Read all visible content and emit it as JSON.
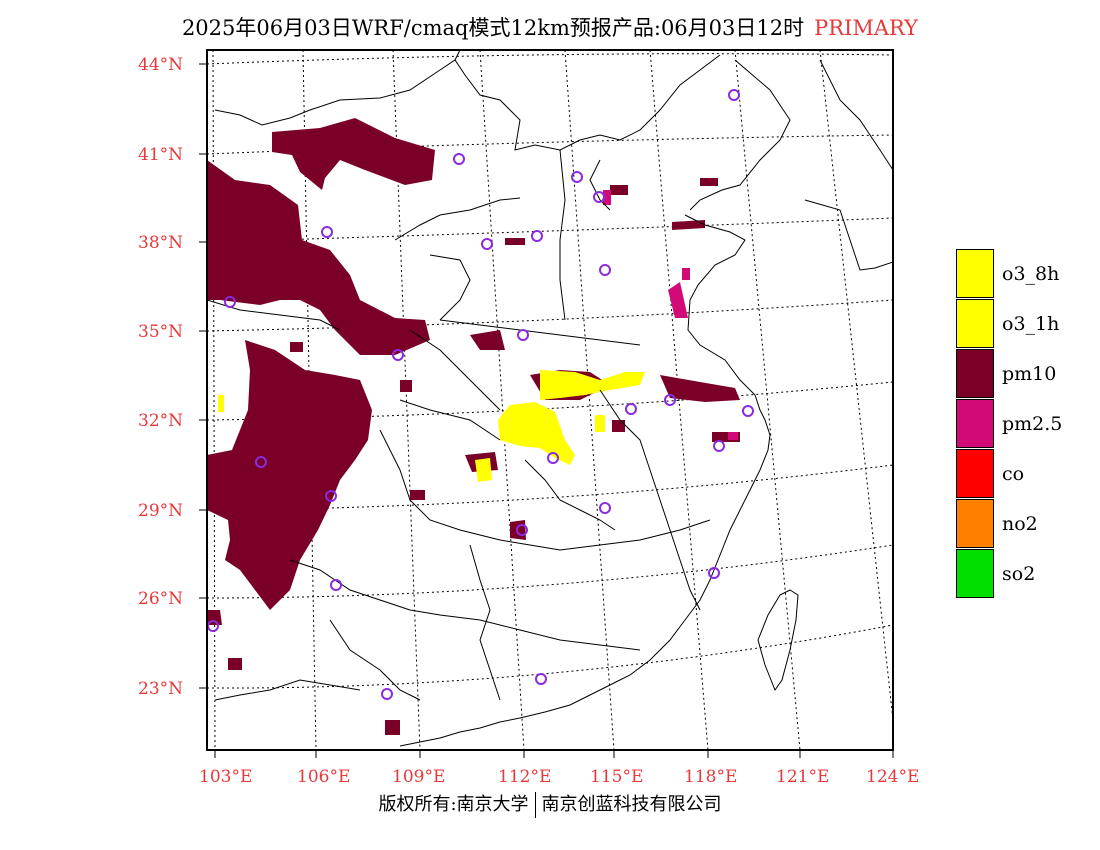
{
  "title": {
    "main": "2025年06月03日WRF/cmaq模式12km预报产品:06月03日12时",
    "tag": "PRIMARY"
  },
  "lat_labels": [
    "44°N",
    "41°N",
    "38°N",
    "35°N",
    "32°N",
    "29°N",
    "26°N",
    "23°N"
  ],
  "lon_labels": [
    "103°E",
    "106°E",
    "109°E",
    "112°E",
    "115°E",
    "118°E",
    "121°E",
    "124°E"
  ],
  "legend": [
    {
      "label": "o3_8h",
      "color": "#ffff00"
    },
    {
      "label": "o3_1h",
      "color": "#ffff00"
    },
    {
      "label": "pm10",
      "color": "#7b0028"
    },
    {
      "label": "pm2.5",
      "color": "#d10a78"
    },
    {
      "label": "co",
      "color": "#ff0000"
    },
    {
      "label": "no2",
      "color": "#ff8000"
    },
    {
      "label": "so2",
      "color": "#00e000"
    }
  ],
  "footer": {
    "left": "版权所有:南京大学",
    "right": "南京创蓝科技有限公司"
  },
  "colors": {
    "accent_red": "#e8383a",
    "station_marker": "#8a2be2"
  }
}
